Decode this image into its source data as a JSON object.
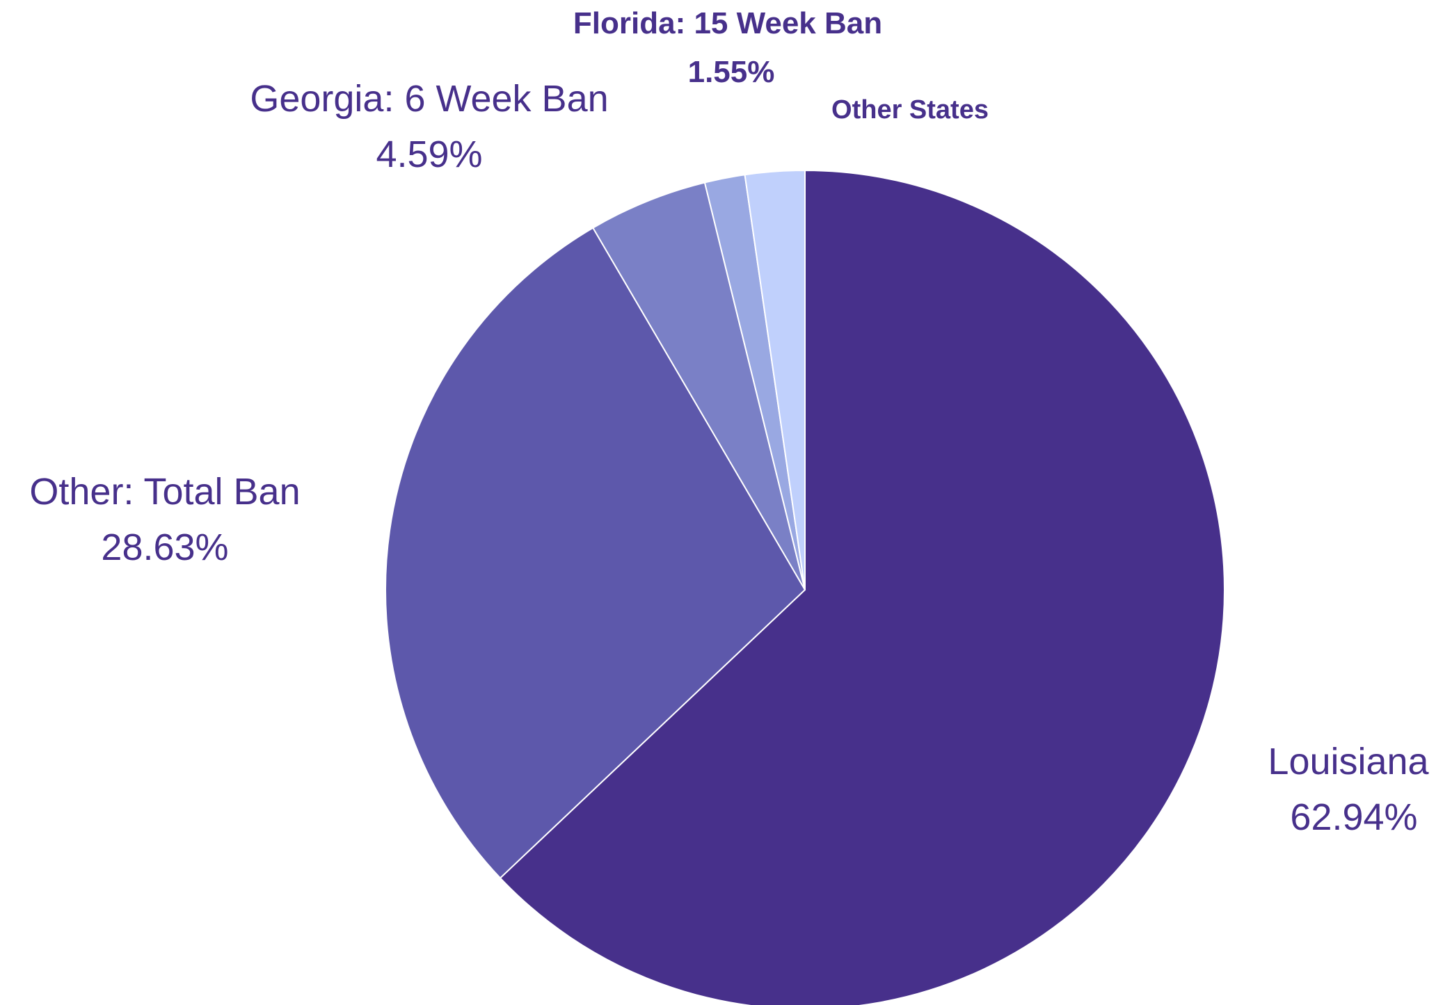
{
  "chart_data": {
    "type": "pie",
    "start_angle_deg": 0,
    "direction": "clockwise",
    "slices": [
      {
        "label": "Louisiana",
        "value_label": "62.94%",
        "value": 62.94,
        "color": "#47308b"
      },
      {
        "label": "Other: Total Ban",
        "value_label": "28.63%",
        "value": 28.63,
        "color": "#5d58ab"
      },
      {
        "label": "Georgia: 6 Week Ban",
        "value_label": "4.59%",
        "value": 4.59,
        "color": "#7a80c6"
      },
      {
        "label": "Florida: 15 Week Ban",
        "value_label": "1.55%",
        "value": 1.55,
        "color": "#99a8e2"
      },
      {
        "label": "Other States",
        "value_label": "",
        "value": 2.29,
        "color": "#c0d0fc"
      }
    ]
  }
}
